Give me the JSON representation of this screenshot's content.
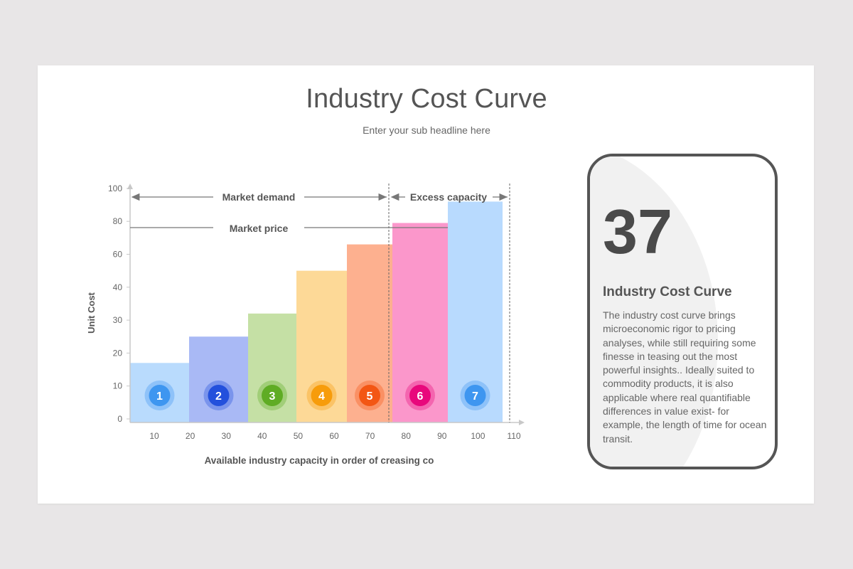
{
  "header": {
    "title": "Industry Cost Curve",
    "subtitle": "Enter your sub headline here"
  },
  "annotations": {
    "market_demand": "Market demand",
    "excess_capacity": "Excess capacity",
    "market_price": "Market price"
  },
  "card": {
    "number": "37",
    "title": "Industry Cost Curve",
    "body": "The industry cost curve brings microeconomic rigor to pricing analyses, while still requiring some finesse in teasing out the most powerful insights.. Ideally suited to commodity products, it is also applicable where real quantifiable differences in value exist- for example, the length of time for ocean transit."
  },
  "chart_data": {
    "type": "bar",
    "title": "Industry Cost Curve",
    "xlabel": "Available industry capacity in order of creasing co",
    "ylabel": "Unit Cost",
    "y_ticks": [
      "0",
      "10",
      "20",
      "30",
      "40",
      "60",
      "80",
      "100"
    ],
    "x_ticks": [
      "10",
      "20",
      "30",
      "40",
      "50",
      "60",
      "70",
      "80",
      "90",
      "100",
      "110"
    ],
    "ylim": [
      0,
      100
    ],
    "grid": false,
    "categories": [
      "1",
      "2",
      "3",
      "4",
      "5",
      "6",
      "7"
    ],
    "values": [
      17,
      25,
      32,
      50,
      66,
      79,
      92
    ],
    "bar_colors": [
      "#b9dbfd",
      "#a9b9f5",
      "#c5e0a5",
      "#fdd997",
      "#fdb08f",
      "#fb97cb",
      "#b8dafe"
    ],
    "badge_colors": [
      "#3e96f0",
      "#2350dc",
      "#5fac24",
      "#f79c0b",
      "#f35614",
      "#e8087c",
      "#3e96f0"
    ],
    "market_price_level": 78,
    "market_demand_range": [
      "0",
      "75"
    ],
    "excess_capacity_range": [
      "75",
      "108"
    ]
  }
}
